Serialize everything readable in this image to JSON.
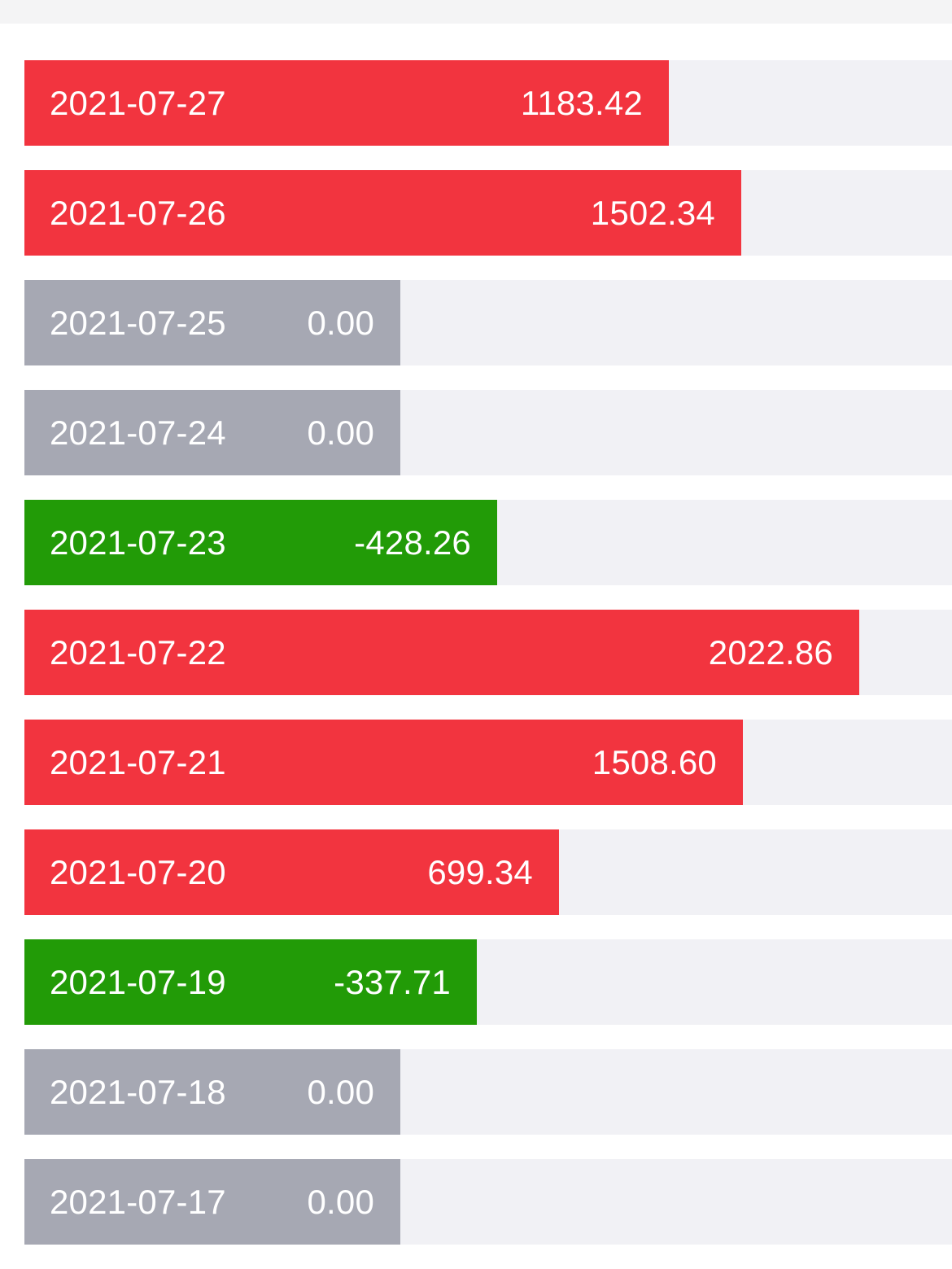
{
  "colors": {
    "up": "#f2343f",
    "down": "#229b07",
    "flat": "#a6a8b3",
    "track": "#f1f1f5",
    "text": "#ffffff"
  },
  "rows": [
    {
      "date": "2021-07-27",
      "value": "1183.42",
      "amount": 1183.42,
      "status": "up"
    },
    {
      "date": "2021-07-26",
      "value": "1502.34",
      "amount": 1502.34,
      "status": "up"
    },
    {
      "date": "2021-07-25",
      "value": "0.00",
      "amount": 0.0,
      "status": "flat"
    },
    {
      "date": "2021-07-24",
      "value": "0.00",
      "amount": 0.0,
      "status": "flat"
    },
    {
      "date": "2021-07-23",
      "value": "-428.26",
      "amount": -428.26,
      "status": "down"
    },
    {
      "date": "2021-07-22",
      "value": "2022.86",
      "amount": 2022.86,
      "status": "up"
    },
    {
      "date": "2021-07-21",
      "value": "1508.60",
      "amount": 1508.6,
      "status": "up"
    },
    {
      "date": "2021-07-20",
      "value": "699.34",
      "amount": 699.34,
      "status": "up"
    },
    {
      "date": "2021-07-19",
      "value": "-337.71",
      "amount": -337.71,
      "status": "down"
    },
    {
      "date": "2021-07-18",
      "value": "0.00",
      "amount": 0.0,
      "status": "flat"
    },
    {
      "date": "2021-07-17",
      "value": "0.00",
      "amount": 0.0,
      "status": "flat"
    }
  ]
}
